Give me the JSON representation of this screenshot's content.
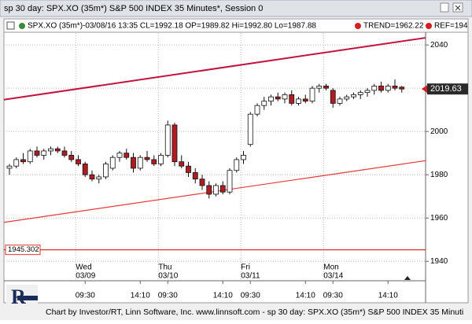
{
  "window_title": "sp 30 day: SPX.XO (35m*) S&P 500 INDEX 35 Minutes*, Session 0",
  "footer": "Chart by Investor/RT, Linn Software, Inc. www.linnsoft.com - sp 30 day: SPX.XO (35m*) S&P 500 INDEX 35 Minuti",
  "chart_data": {
    "type": "candlestick",
    "info": "SPX.XO (35m*)-03/08/16 13:35 CL=1992.18 OP=1989.82 Hi=1992.80 Lo=1987.88",
    "trend_label": "TREND=1962.22",
    "ref_label": "REF=194",
    "categories": [
      null,
      null,
      null,
      null,
      null,
      null,
      null,
      null,
      null,
      null,
      null,
      "09:30",
      null,
      null,
      null,
      null,
      null,
      null,
      null,
      "14:10",
      null,
      null,
      null,
      "09:30",
      null,
      null,
      null,
      null,
      null,
      null,
      null,
      "14:10",
      null,
      null,
      null,
      "09:30",
      null,
      null,
      null,
      null,
      null,
      null,
      null,
      "14:10",
      null,
      null,
      null,
      "09:30",
      null,
      null,
      null,
      null,
      null,
      null,
      null,
      "14:10",
      null,
      null
    ],
    "days": [
      {
        "day": "Wed",
        "date": "03/09"
      },
      {
        "day": "Thu",
        "date": "03/10"
      },
      {
        "day": "Fri",
        "date": "03/11"
      },
      {
        "day": "Mon",
        "date": "03/14"
      }
    ],
    "open": [
      1983,
      1984,
      1987,
      1986,
      1991,
      1989,
      1991,
      1992,
      1991,
      1989,
      1987,
      1985,
      1980,
      1978,
      1979,
      1983,
      1988,
      1990,
      1988,
      1983,
      1988,
      1987,
      1985,
      1989,
      2003,
      1986,
      1984,
      1981,
      1978,
      1975,
      1971,
      1975,
      1972,
      1982,
      1987,
      1994,
      2008,
      2012,
      2014,
      2016,
      2015,
      2017,
      2013,
      2015,
      2014,
      2020,
      2021,
      2019,
      2013,
      2015,
      2016,
      2017,
      2018,
      2019,
      2021,
      2019,
      2021,
      2020.5
    ],
    "high": [
      1985,
      1988,
      1990,
      1992,
      1993,
      1992,
      1993,
      1993,
      1993,
      1991,
      1989,
      1986,
      1982,
      1980,
      1986,
      1989,
      1991,
      1992,
      1990,
      1989,
      1991,
      1989,
      1990,
      2005,
      2004,
      1989,
      1986,
      1983,
      1980,
      1977,
      1976,
      1977,
      1983,
      1988,
      1991,
      2009,
      2013,
      2016,
      2017,
      2018,
      2018,
      2019,
      2016,
      2017,
      2021,
      2022,
      2022,
      2020,
      2016,
      2017,
      2018,
      2019,
      2020,
      2022,
      2023,
      2022,
      2024,
      2021
    ],
    "low": [
      1980,
      1983,
      1985,
      1985,
      1988,
      1987,
      1989,
      1990,
      1988,
      1986,
      1984,
      1979,
      1977,
      1976,
      1978,
      1982,
      1986,
      1987,
      1981,
      1982,
      1986,
      1984,
      1984,
      1988,
      1984,
      1983,
      1979,
      1976,
      1973,
      1969,
      1970,
      1971,
      1971,
      1981,
      1985,
      1993,
      2007,
      2010,
      2012,
      2014,
      2013,
      2012,
      2012,
      2013,
      2013,
      2018,
      2019,
      2011,
      2012,
      2014,
      2015,
      2015,
      2016,
      2017,
      2018,
      2018,
      2019,
      2018
    ],
    "close": [
      1984,
      1987,
      1986,
      1991,
      1989,
      1991,
      1992,
      1991,
      1989,
      1987,
      1985,
      1980,
      1978,
      1979,
      1985,
      1988,
      1990,
      1988,
      1983,
      1988,
      1987,
      1985,
      1989,
      2003,
      1986,
      1984,
      1981,
      1978,
      1975,
      1971,
      1975,
      1972,
      1982,
      1987,
      1989,
      2008,
      2012,
      2014,
      2016,
      2015,
      2017,
      2013,
      2015,
      2014,
      2020,
      2021,
      2020,
      2013,
      2015,
      2016,
      2017,
      2018,
      2019,
      2021,
      2019,
      2021,
      2020,
      2019.63
    ],
    "up_color": "#ffffff",
    "down_color": "#b01c22",
    "trend_lines": [
      {
        "color": "#c4123f",
        "start": 2014.7,
        "end": 2043.3
      },
      {
        "color": "#e8393a",
        "start": 1958,
        "end": 1986.5
      }
    ],
    "ref_line": {
      "value": 1945.302,
      "color": "#e03030"
    },
    "ylim": [
      1931,
      2045.5
    ],
    "yticks": [
      1940,
      1960,
      1980,
      2000,
      2020,
      2040
    ],
    "grid": true
  }
}
